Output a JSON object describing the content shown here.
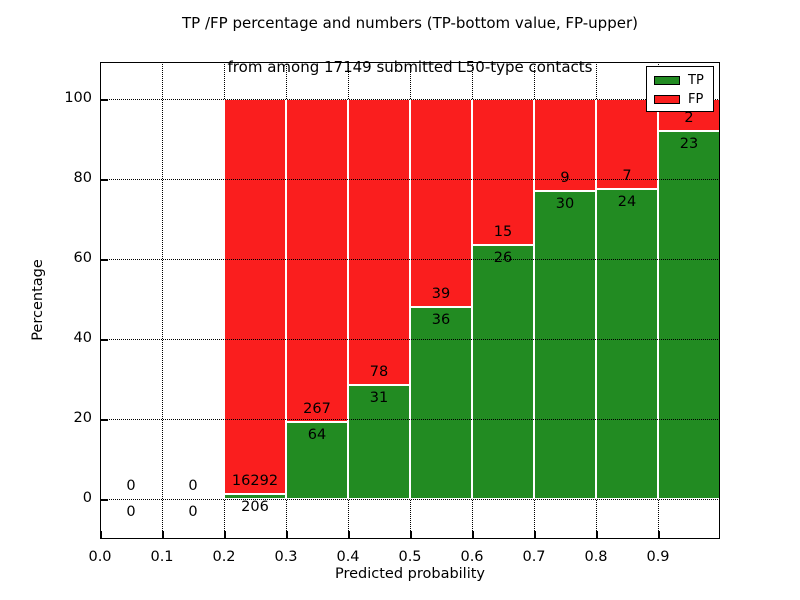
{
  "figure": {
    "title_line1": "TP /FP percentage and numbers (TP-bottom value, FP-upper)",
    "title_line2": "from among 17149 submitted L50-type contacts",
    "xlabel": "Predicted probability",
    "ylabel": "Percentage",
    "legend": {
      "position": "upper right",
      "items": [
        {
          "label": "TP",
          "color_key": "tp"
        },
        {
          "label": "FP",
          "color_key": "fp"
        }
      ]
    }
  },
  "colors": {
    "tp": "#228b22",
    "fp": "#fa1e1e",
    "grid": "#000000",
    "frame": "#000000",
    "background": "#ffffff",
    "bar_edge": "#ffffff"
  },
  "chart_data": {
    "type": "bar",
    "stacked": true,
    "title": "TP /FP percentage and numbers (TP-bottom value, FP-upper) from among 17149 submitted L50-type contacts",
    "xlabel": "Predicted probability",
    "ylabel": "Percentage",
    "xlim": [
      0.0,
      1.0
    ],
    "ylim": [
      -10,
      110
    ],
    "x_tick_values": [
      0.0,
      0.1,
      0.2,
      0.3,
      0.4,
      0.5,
      0.6,
      0.7,
      0.8,
      0.9
    ],
    "x_tick_labels": [
      "0.0",
      "0.1",
      "0.2",
      "0.3",
      "0.4",
      "0.5",
      "0.6",
      "0.7",
      "0.8",
      "0.9"
    ],
    "y_tick_values": [
      0,
      20,
      40,
      60,
      80,
      100
    ],
    "y_tick_labels": [
      "0",
      "20",
      "40",
      "60",
      "80",
      "100"
    ],
    "grid": true,
    "legend_position": "upper right",
    "total_contacts": 17149,
    "series": [
      {
        "name": "TP",
        "role": "bottom",
        "values_pct": [
          0,
          0,
          1.25,
          19.34,
          28.44,
          48.0,
          63.41,
          76.92,
          77.42,
          92.0
        ]
      },
      {
        "name": "FP",
        "role": "top",
        "values_pct": [
          0,
          0,
          98.75,
          80.66,
          71.56,
          52.0,
          36.59,
          23.08,
          22.58,
          8.0
        ]
      }
    ],
    "bins": [
      {
        "x0": 0.0,
        "x1": 0.1,
        "tp_count": 0,
        "fp_count": 0,
        "tp_pct": 0.0
      },
      {
        "x0": 0.1,
        "x1": 0.2,
        "tp_count": 0,
        "fp_count": 0,
        "tp_pct": 0.0
      },
      {
        "x0": 0.2,
        "x1": 0.3,
        "tp_count": 206,
        "fp_count": 16292,
        "tp_pct": 1.25
      },
      {
        "x0": 0.3,
        "x1": 0.4,
        "tp_count": 64,
        "fp_count": 267,
        "tp_pct": 19.34
      },
      {
        "x0": 0.4,
        "x1": 0.5,
        "tp_count": 31,
        "fp_count": 78,
        "tp_pct": 28.44
      },
      {
        "x0": 0.5,
        "x1": 0.6,
        "tp_count": 36,
        "fp_count": 39,
        "tp_pct": 48.0
      },
      {
        "x0": 0.6,
        "x1": 0.7,
        "tp_count": 26,
        "fp_count": 15,
        "tp_pct": 63.41
      },
      {
        "x0": 0.7,
        "x1": 0.8,
        "tp_count": 30,
        "fp_count": 9,
        "tp_pct": 76.92
      },
      {
        "x0": 0.8,
        "x1": 0.9,
        "tp_count": 24,
        "fp_count": 7,
        "tp_pct": 77.42
      },
      {
        "x0": 0.9,
        "x1": 1.0,
        "tp_count": 23,
        "fp_count": 2,
        "tp_pct": 92.0
      }
    ]
  }
}
